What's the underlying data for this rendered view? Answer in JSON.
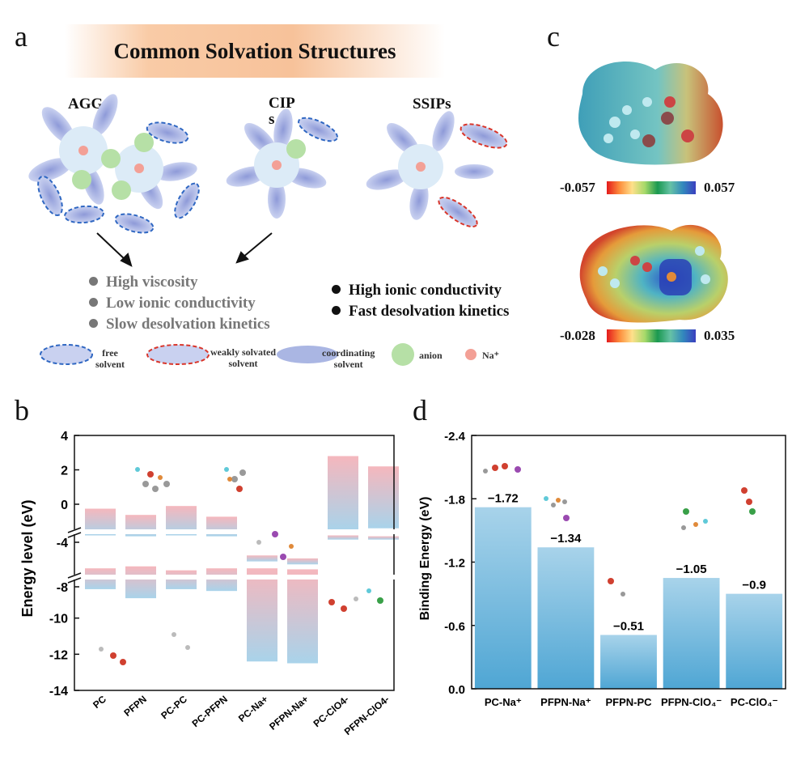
{
  "panel_a": {
    "letter": "a",
    "title": "Common Solvation Structures",
    "labels": {
      "aggs": "AGGs",
      "cip": "CIP\ns",
      "ssips": "SSIPs"
    },
    "properties_gray": [
      "High viscosity",
      "Low ionic conductivity",
      "Slow desolvation kinetics"
    ],
    "properties_black": [
      "High ionic conductivity",
      "Fast desolvation kinetics"
    ],
    "legend": {
      "free": "free\nsolvent",
      "weak": "weakly solvated\nsolvent",
      "coord": "coordinating\nsolvent",
      "anion": "anion",
      "na": "Na⁺"
    },
    "colors": {
      "free_border": "#2f67c2",
      "weak_border": "#d9362b",
      "solvent": "#aab6e3",
      "anion": "#b6e0a6",
      "na": "#f3a096",
      "cluster": "#dcebf7"
    }
  },
  "panel_c": {
    "letter": "c",
    "colorbar_top": {
      "min": "-0.057",
      "max": "0.057"
    },
    "colorbar_bottom": {
      "min": "-0.028",
      "max": "0.035"
    }
  },
  "panel_b": {
    "letter": "b",
    "ylabel": "Energy level (eV)",
    "ticks": [
      "4",
      "2",
      "0",
      "-4",
      "-8",
      "-10",
      "-12",
      "-14"
    ]
  },
  "panel_d": {
    "letter": "d",
    "ylabel": "Binding Energy (eV)",
    "ticks": [
      "-2.4",
      "-1.8",
      "-1.2",
      "-0.6",
      "0.0"
    ]
  },
  "chart_data": [
    {
      "type": "bar",
      "panel": "b",
      "ylabel": "Energy level (eV)",
      "ylim": [
        -14,
        4
      ],
      "axis_breaks": [
        [
          -4,
          0
        ],
        [
          -8,
          -4
        ]
      ],
      "categories": [
        "PC",
        "PFPN",
        "PC-PC",
        "PC-PFPN",
        "PC-Na+",
        "PFPN-Na+",
        "PC-ClO4-",
        "PFPN-ClO4-"
      ],
      "lumo_bars": [
        {
          "category": "PC",
          "range": [
            -3.5,
            -0.5
          ]
        },
        {
          "category": "PFPN",
          "range": [
            -3.6,
            -1.2
          ]
        },
        {
          "category": "PC-PC",
          "range": [
            -3.5,
            -0.2
          ]
        },
        {
          "category": "PC-PFPN",
          "range": [
            -3.6,
            -1.4
          ]
        },
        {
          "category": "PC-Na+",
          "range": [
            -6.5,
            -5.9
          ]
        },
        {
          "category": "PFPN-Na+",
          "range": [
            -6.8,
            -6.2
          ]
        },
        {
          "category": "PC-ClO4-",
          "range": [
            -2.9,
            2.8
          ]
        },
        {
          "category": "PFPN-ClO4-",
          "range": [
            -2.7,
            2.2
          ]
        }
      ],
      "homo_bars": [
        {
          "category": "PC",
          "range": [
            -8.4,
            -7.2
          ]
        },
        {
          "category": "PFPN",
          "range": [
            -8.9,
            -7.0
          ]
        },
        {
          "category": "PC-PC",
          "range": [
            -8.4,
            -7.4
          ]
        },
        {
          "category": "PC-PFPN",
          "range": [
            -8.5,
            -7.2
          ]
        },
        {
          "category": "PC-Na+",
          "range": [
            -12.4,
            -7.2
          ]
        },
        {
          "category": "PFPN-Na+",
          "range": [
            -12.5,
            -7.3
          ]
        },
        {
          "category": "PC-ClO4-",
          "range": [
            -4.3,
            -3.5
          ]
        },
        {
          "category": "PFPN-ClO4-",
          "range": [
            -4.3,
            -3.6
          ]
        }
      ]
    },
    {
      "type": "bar",
      "panel": "d",
      "ylabel": "Binding Energy (eV)",
      "ylim": [
        0.0,
        -2.4
      ],
      "categories": [
        "PC-Na⁺",
        "PFPN-Na⁺",
        "PFPN-PC",
        "PFPN-ClO₄⁻",
        "PC-ClO₄⁻"
      ],
      "values": [
        -1.72,
        -1.34,
        -0.51,
        -1.05,
        -0.9
      ],
      "data_labels": [
        "−1.72",
        "−1.34",
        "−0.51",
        "−1.05",
        "−0.9"
      ]
    }
  ]
}
